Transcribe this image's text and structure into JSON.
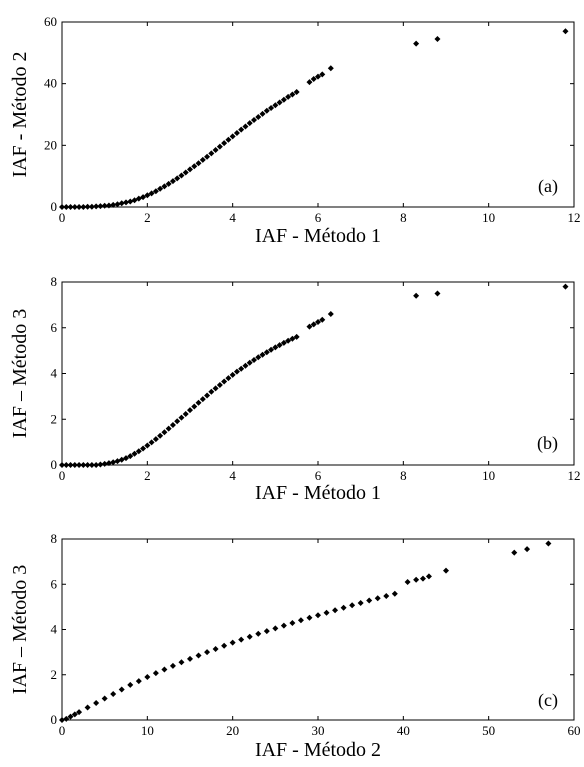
{
  "chart_data": [
    {
      "type": "scatter",
      "panel_label": "(a)",
      "xlabel": "IAF - Método 1",
      "ylabel": "IAF - Método 2",
      "xlim": [
        0,
        12
      ],
      "ylim": [
        0,
        60
      ],
      "xticks": [
        0,
        2,
        4,
        6,
        8,
        10,
        12
      ],
      "yticks": [
        0,
        20,
        40,
        60
      ],
      "grid": false,
      "points": [
        [
          0.0,
          0.0
        ],
        [
          0.1,
          0.0
        ],
        [
          0.2,
          0.0
        ],
        [
          0.3,
          0.0
        ],
        [
          0.4,
          0.0
        ],
        [
          0.5,
          0.0
        ],
        [
          0.6,
          0.1
        ],
        [
          0.7,
          0.1
        ],
        [
          0.8,
          0.2
        ],
        [
          0.9,
          0.3
        ],
        [
          1.0,
          0.4
        ],
        [
          1.1,
          0.5
        ],
        [
          1.2,
          0.7
        ],
        [
          1.3,
          0.9
        ],
        [
          1.4,
          1.2
        ],
        [
          1.5,
          1.5
        ],
        [
          1.6,
          1.8
        ],
        [
          1.7,
          2.2
        ],
        [
          1.8,
          2.7
        ],
        [
          1.9,
          3.2
        ],
        [
          2.0,
          3.8
        ],
        [
          2.1,
          4.4
        ],
        [
          2.2,
          5.1
        ],
        [
          2.3,
          5.9
        ],
        [
          2.4,
          6.7
        ],
        [
          2.5,
          7.5
        ],
        [
          2.6,
          8.4
        ],
        [
          2.7,
          9.3
        ],
        [
          2.8,
          10.2
        ],
        [
          2.9,
          11.2
        ],
        [
          3.0,
          12.2
        ],
        [
          3.1,
          13.2
        ],
        [
          3.2,
          14.2
        ],
        [
          3.3,
          15.3
        ],
        [
          3.4,
          16.3
        ],
        [
          3.5,
          17.4
        ],
        [
          3.6,
          18.5
        ],
        [
          3.7,
          19.6
        ],
        [
          3.8,
          20.7
        ],
        [
          3.9,
          21.8
        ],
        [
          4.0,
          22.9
        ],
        [
          4.1,
          24.0
        ],
        [
          4.2,
          25.1
        ],
        [
          4.3,
          26.1
        ],
        [
          4.4,
          27.2
        ],
        [
          4.5,
          28.2
        ],
        [
          4.6,
          29.2
        ],
        [
          4.7,
          30.2
        ],
        [
          4.8,
          31.2
        ],
        [
          4.9,
          32.1
        ],
        [
          5.0,
          33.0
        ],
        [
          5.1,
          33.9
        ],
        [
          5.2,
          34.8
        ],
        [
          5.3,
          35.7
        ],
        [
          5.4,
          36.5
        ],
        [
          5.5,
          37.3
        ],
        [
          5.8,
          40.5
        ],
        [
          5.9,
          41.5
        ],
        [
          6.0,
          42.3
        ],
        [
          6.1,
          43.0
        ],
        [
          6.3,
          45.0
        ],
        [
          8.3,
          53.0
        ],
        [
          8.8,
          54.5
        ],
        [
          11.8,
          57.0
        ]
      ]
    },
    {
      "type": "scatter",
      "panel_label": "(b)",
      "xlabel": "IAF - Método 1",
      "ylabel": "IAF – Método 3",
      "xlim": [
        0,
        12
      ],
      "ylim": [
        0,
        8
      ],
      "xticks": [
        0,
        2,
        4,
        6,
        8,
        10,
        12
      ],
      "yticks": [
        0,
        2,
        4,
        6,
        8
      ],
      "grid": false,
      "points": [
        [
          0.0,
          0.0
        ],
        [
          0.1,
          0.0
        ],
        [
          0.2,
          0.0
        ],
        [
          0.3,
          0.0
        ],
        [
          0.4,
          0.0
        ],
        [
          0.5,
          0.0
        ],
        [
          0.6,
          0.0
        ],
        [
          0.7,
          0.0
        ],
        [
          0.8,
          0.0
        ],
        [
          0.9,
          0.02
        ],
        [
          1.0,
          0.05
        ],
        [
          1.1,
          0.08
        ],
        [
          1.2,
          0.12
        ],
        [
          1.3,
          0.17
        ],
        [
          1.4,
          0.23
        ],
        [
          1.5,
          0.3
        ],
        [
          1.6,
          0.39
        ],
        [
          1.7,
          0.49
        ],
        [
          1.8,
          0.6
        ],
        [
          1.9,
          0.72
        ],
        [
          2.0,
          0.85
        ],
        [
          2.1,
          0.99
        ],
        [
          2.2,
          1.13
        ],
        [
          2.3,
          1.28
        ],
        [
          2.4,
          1.43
        ],
        [
          2.5,
          1.59
        ],
        [
          2.6,
          1.75
        ],
        [
          2.7,
          1.91
        ],
        [
          2.8,
          2.07
        ],
        [
          2.9,
          2.23
        ],
        [
          3.0,
          2.4
        ],
        [
          3.1,
          2.56
        ],
        [
          3.2,
          2.72
        ],
        [
          3.3,
          2.88
        ],
        [
          3.4,
          3.04
        ],
        [
          3.5,
          3.2
        ],
        [
          3.6,
          3.35
        ],
        [
          3.7,
          3.5
        ],
        [
          3.8,
          3.65
        ],
        [
          3.9,
          3.8
        ],
        [
          4.0,
          3.94
        ],
        [
          4.1,
          4.08
        ],
        [
          4.2,
          4.21
        ],
        [
          4.3,
          4.34
        ],
        [
          4.4,
          4.47
        ],
        [
          4.5,
          4.59
        ],
        [
          4.6,
          4.71
        ],
        [
          4.7,
          4.82
        ],
        [
          4.8,
          4.93
        ],
        [
          4.9,
          5.04
        ],
        [
          5.0,
          5.14
        ],
        [
          5.1,
          5.24
        ],
        [
          5.2,
          5.34
        ],
        [
          5.3,
          5.43
        ],
        [
          5.4,
          5.52
        ],
        [
          5.5,
          5.6
        ],
        [
          5.8,
          6.05
        ],
        [
          5.9,
          6.15
        ],
        [
          6.0,
          6.25
        ],
        [
          6.1,
          6.35
        ],
        [
          6.3,
          6.6
        ],
        [
          8.3,
          7.4
        ],
        [
          8.8,
          7.5
        ],
        [
          11.8,
          7.8
        ]
      ]
    },
    {
      "type": "scatter",
      "panel_label": "(c)",
      "xlabel": "IAF - Método 2",
      "ylabel": "IAF – Método 3",
      "xlim": [
        0,
        60
      ],
      "ylim": [
        0,
        8
      ],
      "xticks": [
        0,
        10,
        20,
        30,
        40,
        50,
        60
      ],
      "yticks": [
        0,
        2,
        4,
        6,
        8
      ],
      "grid": false,
      "points": [
        [
          0.0,
          0.0
        ],
        [
          0.5,
          0.05
        ],
        [
          1.0,
          0.15
        ],
        [
          1.5,
          0.25
        ],
        [
          2.0,
          0.35
        ],
        [
          3.0,
          0.55
        ],
        [
          4.0,
          0.75
        ],
        [
          5.0,
          0.95
        ],
        [
          6.0,
          1.15
        ],
        [
          7.0,
          1.35
        ],
        [
          8.0,
          1.55
        ],
        [
          9.0,
          1.72
        ],
        [
          10.0,
          1.9
        ],
        [
          11.0,
          2.07
        ],
        [
          12.0,
          2.23
        ],
        [
          13.0,
          2.39
        ],
        [
          14.0,
          2.55
        ],
        [
          15.0,
          2.7
        ],
        [
          16.0,
          2.85
        ],
        [
          17.0,
          3.0
        ],
        [
          18.0,
          3.14
        ],
        [
          19.0,
          3.28
        ],
        [
          20.0,
          3.42
        ],
        [
          21.0,
          3.55
        ],
        [
          22.0,
          3.68
        ],
        [
          23.0,
          3.81
        ],
        [
          24.0,
          3.93
        ],
        [
          25.0,
          4.05
        ],
        [
          26.0,
          4.17
        ],
        [
          27.0,
          4.29
        ],
        [
          28.0,
          4.41
        ],
        [
          29.0,
          4.52
        ],
        [
          30.0,
          4.63
        ],
        [
          31.0,
          4.74
        ],
        [
          32.0,
          4.85
        ],
        [
          33.0,
          4.96
        ],
        [
          34.0,
          5.07
        ],
        [
          35.0,
          5.17
        ],
        [
          36.0,
          5.28
        ],
        [
          37.0,
          5.38
        ],
        [
          38.0,
          5.48
        ],
        [
          39.0,
          5.58
        ],
        [
          40.5,
          6.1
        ],
        [
          41.5,
          6.2
        ],
        [
          42.3,
          6.25
        ],
        [
          43.0,
          6.35
        ],
        [
          45.0,
          6.6
        ],
        [
          53.0,
          7.4
        ],
        [
          54.5,
          7.55
        ],
        [
          57.0,
          7.8
        ]
      ]
    }
  ]
}
